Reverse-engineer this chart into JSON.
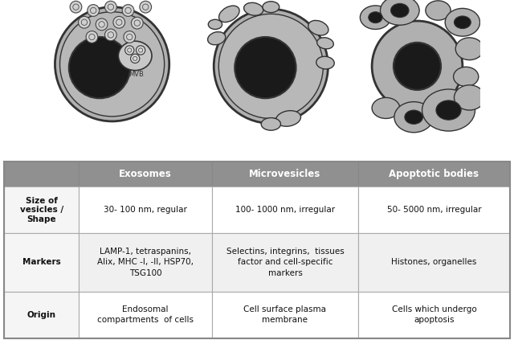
{
  "bg_color": "#ffffff",
  "cell_fill": "#b0b0b0",
  "cell_edge": "#333333",
  "nucleus_fill": "#1a1a1a",
  "mvb_fill": "#c8c8c8",
  "exosome_fill": "#d0d0d0",
  "table_header_fill": "#909090",
  "table_header_text": "#ffffff",
  "table_border": "#aaaaaa",
  "col_headers": [
    "Exosomes",
    "Microvesicles",
    "Apoptotic bodies"
  ],
  "row_headers": [
    "Size of\nvesicles /\nShape",
    "Markers",
    "Origin"
  ],
  "cell_data": [
    [
      "30- 100 nm, regular",
      "100- 1000 nm, irregular",
      "50- 5000 nm, irregular"
    ],
    [
      "LAMP-1, tetraspanins,\nAlix, MHC -I, -II, HSP70,\nTSG100",
      "Selectins, integrins,  tissues\nfactor and cell-specific\nmarkers",
      "Histones, organelles"
    ],
    [
      "Endosomal\ncompartments  of cells",
      "Cell surface plasma\nmembrane",
      "Cells which undergo\napoptosis"
    ]
  ]
}
